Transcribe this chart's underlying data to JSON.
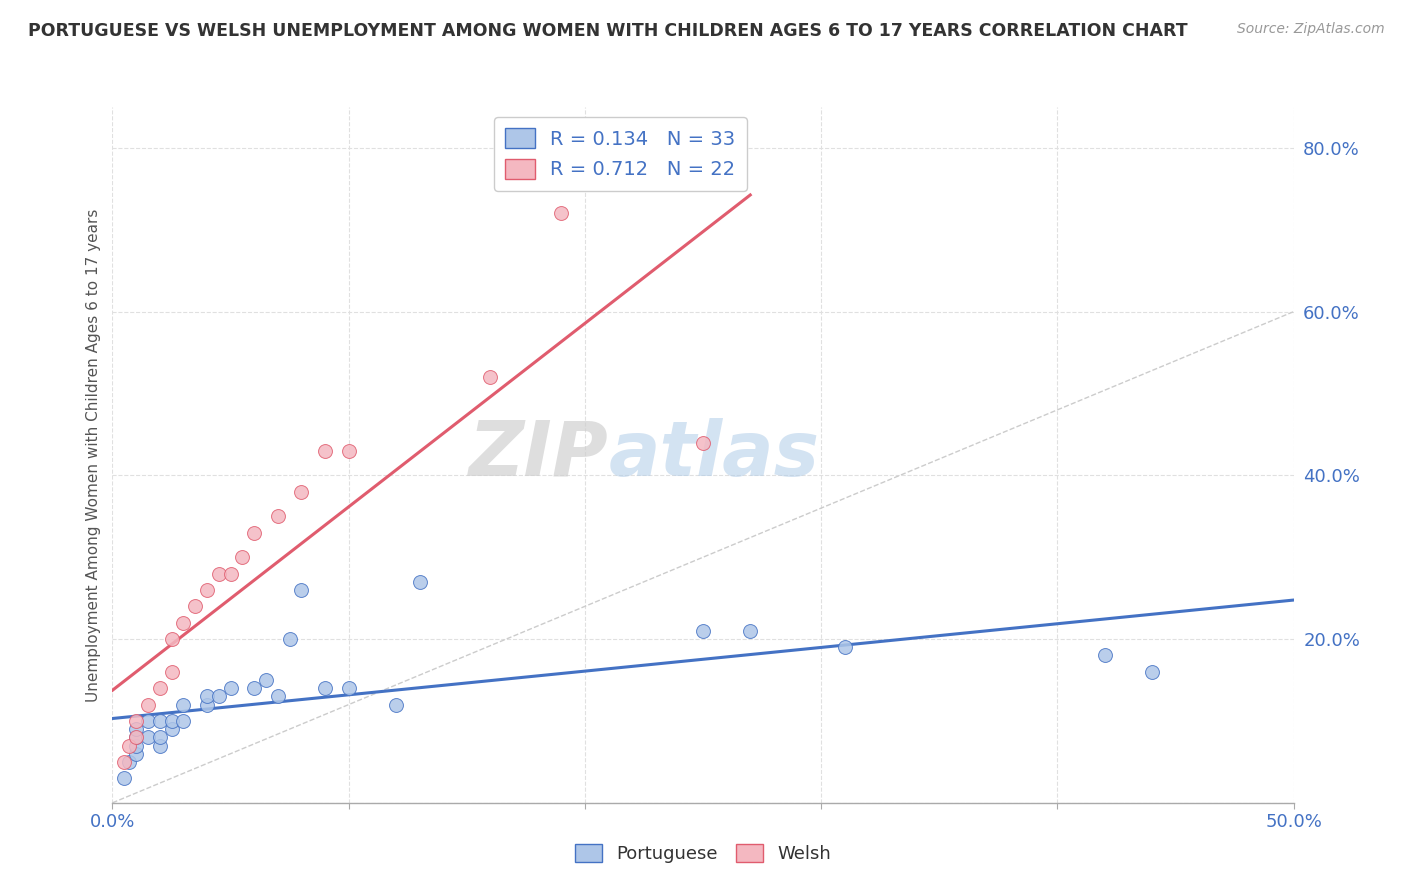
{
  "title": "PORTUGUESE VS WELSH UNEMPLOYMENT AMONG WOMEN WITH CHILDREN AGES 6 TO 17 YEARS CORRELATION CHART",
  "source": "Source: ZipAtlas.com",
  "ylabel": "Unemployment Among Women with Children Ages 6 to 17 years",
  "xlim": [
    0.0,
    0.5
  ],
  "ylim": [
    0.0,
    0.85
  ],
  "portuguese_R": 0.134,
  "portuguese_N": 33,
  "welsh_R": 0.712,
  "welsh_N": 22,
  "portuguese_color": "#aec6e8",
  "welsh_color": "#f4b8c1",
  "portuguese_line_color": "#4472c4",
  "welsh_line_color": "#e05c6e",
  "background_color": "#ffffff",
  "portuguese_x": [
    0.005,
    0.007,
    0.01,
    0.01,
    0.01,
    0.01,
    0.015,
    0.015,
    0.02,
    0.02,
    0.02,
    0.025,
    0.025,
    0.03,
    0.03,
    0.04,
    0.04,
    0.045,
    0.05,
    0.06,
    0.065,
    0.07,
    0.075,
    0.08,
    0.09,
    0.1,
    0.12,
    0.13,
    0.25,
    0.27,
    0.31,
    0.42,
    0.44
  ],
  "portuguese_y": [
    0.03,
    0.05,
    0.06,
    0.07,
    0.08,
    0.09,
    0.08,
    0.1,
    0.07,
    0.08,
    0.1,
    0.09,
    0.1,
    0.1,
    0.12,
    0.12,
    0.13,
    0.13,
    0.14,
    0.14,
    0.15,
    0.13,
    0.2,
    0.26,
    0.14,
    0.14,
    0.12,
    0.27,
    0.21,
    0.21,
    0.19,
    0.18,
    0.16
  ],
  "welsh_x": [
    0.005,
    0.007,
    0.01,
    0.01,
    0.015,
    0.02,
    0.025,
    0.025,
    0.03,
    0.035,
    0.04,
    0.045,
    0.05,
    0.055,
    0.06,
    0.07,
    0.08,
    0.09,
    0.1,
    0.16,
    0.19,
    0.25
  ],
  "welsh_y": [
    0.05,
    0.07,
    0.08,
    0.1,
    0.12,
    0.14,
    0.16,
    0.2,
    0.22,
    0.24,
    0.26,
    0.28,
    0.28,
    0.3,
    0.33,
    0.35,
    0.38,
    0.43,
    0.43,
    0.52,
    0.72,
    0.44
  ]
}
